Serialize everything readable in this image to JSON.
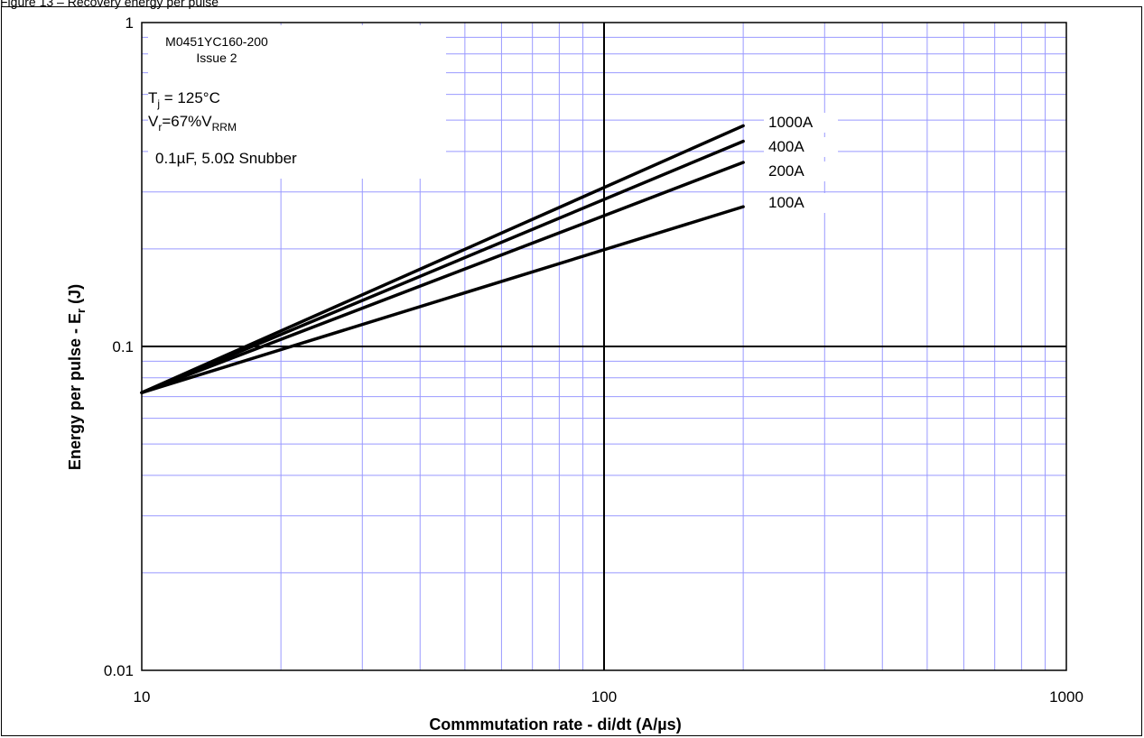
{
  "caption": "Figure 13 – Recovery energy per pulse",
  "colors": {
    "minor_grid": "#9999ff",
    "major_grid": "#000000",
    "series": "#000000",
    "background": "#ffffff"
  },
  "chart_data": {
    "type": "line",
    "xscale": "log",
    "yscale": "log",
    "xlim": [
      10,
      1000
    ],
    "ylim": [
      0.01,
      1
    ],
    "xticks": [
      "10",
      "100",
      "1000"
    ],
    "yticks": [
      "0.01",
      "0.1",
      "1"
    ],
    "xlabel": "Commmutation rate - di/dt (A/µs)",
    "ylabel_main": "Energy per pulse - E",
    "ylabel_sub": "r",
    "ylabel_tail": " (J)",
    "grid": true,
    "annotations": {
      "part_number": "M0451YC160-200",
      "issue": "Issue 2",
      "tj_main": "T",
      "tj_sub": "j",
      "tj_tail": " = 125°C",
      "vr_main": "V",
      "vr_sub": "r",
      "vr_mid": "=67%V",
      "vr_sub2": "RRM",
      "snubber": "0.1µF, 5.0Ω Snubber"
    },
    "series": [
      {
        "name": "1000A",
        "x": [
          10,
          200
        ],
        "y": [
          0.072,
          0.48
        ]
      },
      {
        "name": "400A",
        "x": [
          10,
          200
        ],
        "y": [
          0.072,
          0.43
        ]
      },
      {
        "name": "200A",
        "x": [
          10,
          200
        ],
        "y": [
          0.072,
          0.37
        ]
      },
      {
        "name": "100A",
        "x": [
          10,
          200
        ],
        "y": [
          0.072,
          0.27
        ]
      }
    ]
  }
}
